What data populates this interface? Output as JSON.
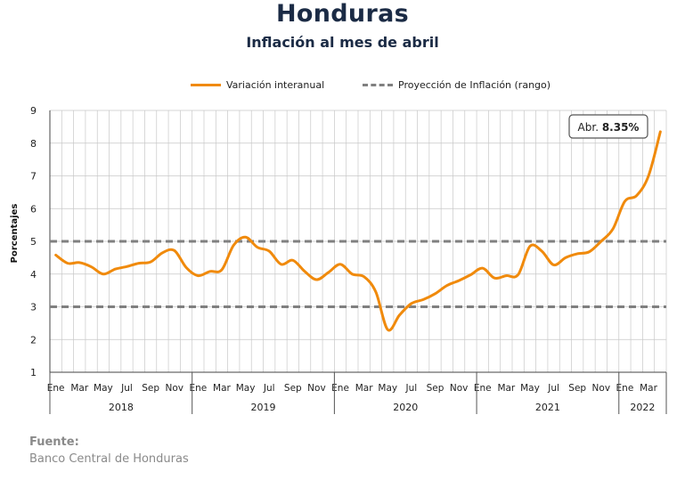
{
  "header": {
    "title": "Honduras",
    "subtitle": "Inflación al mes de abril"
  },
  "legend": {
    "series_label": "Variación interanual",
    "band_label": "Proyección de Inflación (rango)"
  },
  "source": {
    "label": "Fuente:",
    "text": "Banco Central de Honduras"
  },
  "colors": {
    "series": "#f08a0c",
    "band": "#808080",
    "grid": "#c8c8c8",
    "title": "#1b2b45"
  },
  "chart_data": {
    "type": "line",
    "ylabel": "Porcentajes",
    "ylim": [
      1,
      9
    ],
    "yticks": [
      1,
      2,
      3,
      4,
      5,
      6,
      7,
      8,
      9
    ],
    "grid": true,
    "legend_position": "top",
    "x_tick_labels": [
      "Ene",
      "Mar",
      "May",
      "Jul",
      "Sep",
      "Nov",
      "Ene",
      "Mar",
      "May",
      "Jul",
      "Sep",
      "Nov",
      "Ene",
      "Mar",
      "May",
      "Jul",
      "Sep",
      "Nov",
      "Ene",
      "Mar",
      "May",
      "Jul",
      "Sep",
      "Nov",
      "Ene",
      "Mar"
    ],
    "years": [
      "2018",
      "2019",
      "2020",
      "2021",
      "2022"
    ],
    "series": [
      {
        "name": "Variación interanual",
        "values": [
          4.58,
          4.33,
          4.35,
          4.22,
          4.0,
          4.15,
          4.23,
          4.33,
          4.37,
          4.65,
          4.72,
          4.2,
          3.95,
          4.08,
          4.13,
          4.88,
          5.13,
          4.82,
          4.7,
          4.3,
          4.42,
          4.08,
          3.83,
          4.05,
          4.3,
          4.0,
          3.92,
          3.45,
          2.3,
          2.75,
          3.1,
          3.22,
          3.4,
          3.65,
          3.8,
          3.98,
          4.18,
          3.88,
          3.95,
          3.98,
          4.85,
          4.7,
          4.28,
          4.5,
          4.62,
          4.68,
          5.0,
          5.38,
          6.22,
          6.4,
          7.0,
          8.35
        ]
      }
    ],
    "inflation_range": {
      "name": "Proyección de Inflación (rango)",
      "lower": 3,
      "upper": 5
    },
    "annotation": {
      "label": "Abr.",
      "value": "8.35%"
    }
  }
}
